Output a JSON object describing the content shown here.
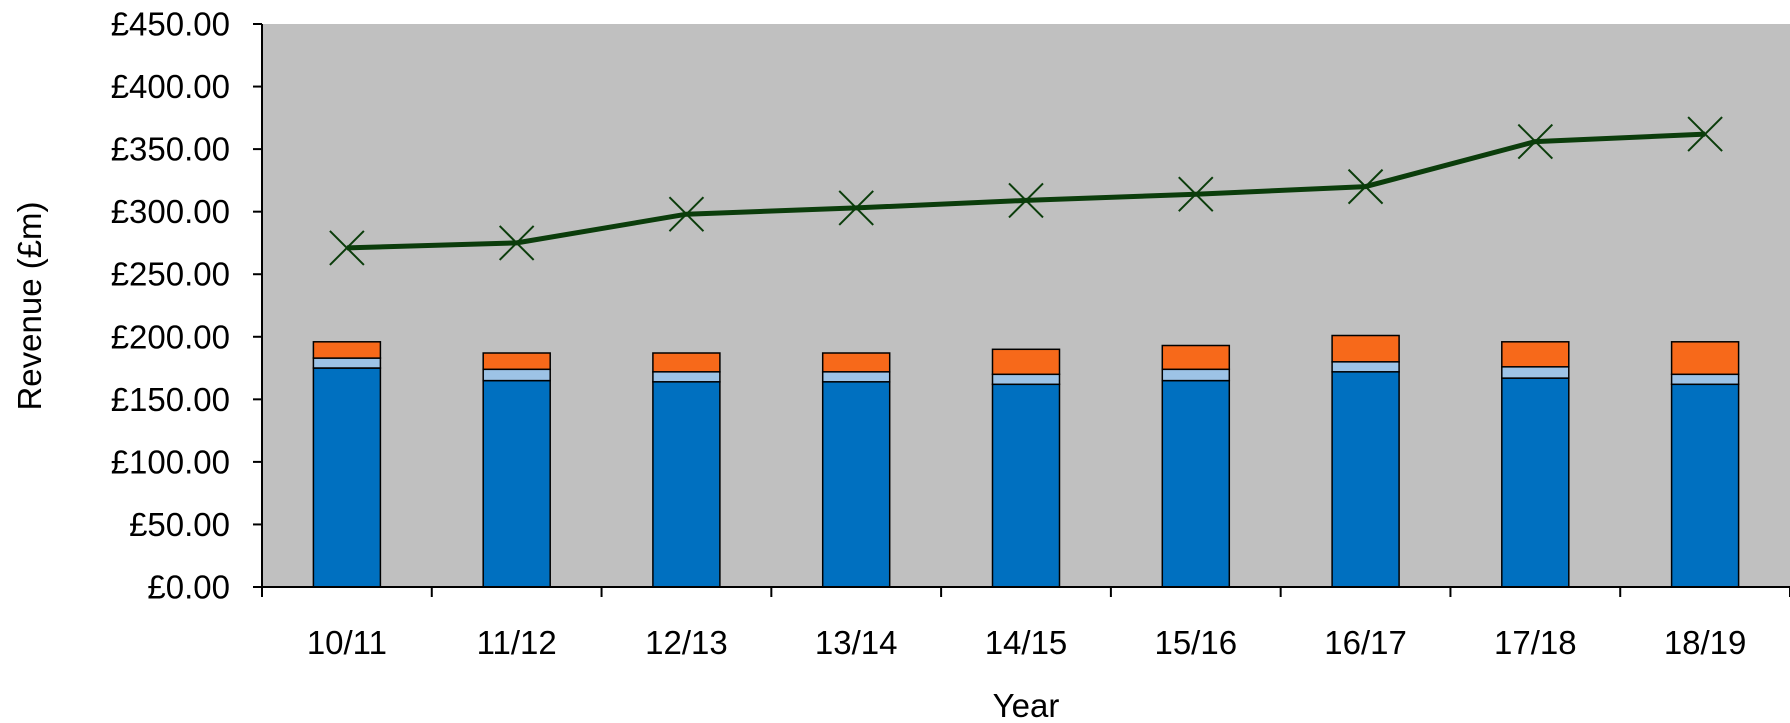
{
  "chart_data": {
    "type": "bar",
    "stacked": true,
    "xlabel": "Year",
    "ylabel": "Revenue (£m)",
    "ylim": [
      0,
      450
    ],
    "y_tick_step": 50,
    "y_tick_labels": [
      "£0.00",
      "£50.00",
      "£100.00",
      "£150.00",
      "£200.00",
      "£250.00",
      "£300.00",
      "£350.00",
      "£400.00",
      "£450.00"
    ],
    "categories": [
      "10/11",
      "11/12",
      "12/13",
      "13/14",
      "14/15",
      "15/16",
      "16/17",
      "17/18",
      "18/19"
    ],
    "series": [
      {
        "type": "bar",
        "color": "#0070C0",
        "values": [
          175,
          165,
          164,
          164,
          162,
          165,
          172,
          167,
          162
        ]
      },
      {
        "type": "bar",
        "color": "#9DC3E6",
        "values": [
          8,
          9,
          8,
          8,
          8,
          9,
          8,
          9,
          8
        ]
      },
      {
        "type": "bar",
        "color": "#F7691A",
        "values": [
          13,
          13,
          15,
          15,
          20,
          19,
          21,
          20,
          26
        ]
      },
      {
        "type": "line",
        "color": "#0B3D0B",
        "marker": "x",
        "values": [
          271,
          275,
          298,
          303,
          309,
          314,
          320,
          356,
          362
        ]
      }
    ],
    "grid": false,
    "legend": "none",
    "plot_background": "#C0C0C0"
  }
}
